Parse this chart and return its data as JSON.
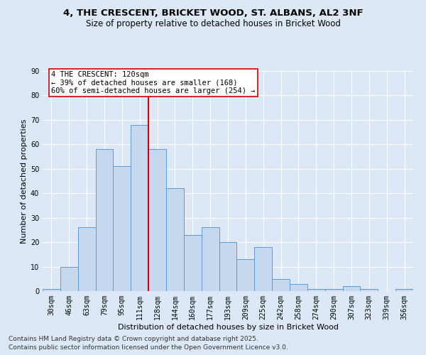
{
  "title": "4, THE CRESCENT, BRICKET WOOD, ST. ALBANS, AL2 3NF",
  "subtitle": "Size of property relative to detached houses in Bricket Wood",
  "xlabel": "Distribution of detached houses by size in Bricket Wood",
  "ylabel": "Number of detached properties",
  "bar_color": "#c5d8ed",
  "bar_edge_color": "#5b9bd5",
  "bg_color": "#dce8f5",
  "grid_color": "#ffffff",
  "fig_bg_color": "#dce8f5",
  "categories": [
    "30sqm",
    "46sqm",
    "63sqm",
    "79sqm",
    "95sqm",
    "111sqm",
    "128sqm",
    "144sqm",
    "160sqm",
    "177sqm",
    "193sqm",
    "209sqm",
    "225sqm",
    "242sqm",
    "258sqm",
    "274sqm",
    "290sqm",
    "307sqm",
    "323sqm",
    "339sqm",
    "356sqm"
  ],
  "values": [
    1,
    10,
    26,
    58,
    51,
    68,
    58,
    42,
    23,
    26,
    20,
    13,
    18,
    5,
    3,
    1,
    1,
    2,
    1,
    0,
    1
  ],
  "vline_x": 5.5,
  "annotation_line1": "4 THE CRESCENT: 120sqm",
  "annotation_line2": "← 39% of detached houses are smaller (168)",
  "annotation_line3": "60% of semi-detached houses are larger (254) →",
  "annotation_box_color": "#ffffff",
  "annotation_box_edge": "#cc0000",
  "vline_color": "#cc0000",
  "ylim": [
    0,
    90
  ],
  "yticks": [
    0,
    10,
    20,
    30,
    40,
    50,
    60,
    70,
    80,
    90
  ],
  "footnote1": "Contains HM Land Registry data © Crown copyright and database right 2025.",
  "footnote2": "Contains public sector information licensed under the Open Government Licence v3.0.",
  "title_fontsize": 9.5,
  "subtitle_fontsize": 8.5,
  "axis_label_fontsize": 8,
  "tick_fontsize": 7,
  "annotation_fontsize": 7.5,
  "footnote_fontsize": 6.5
}
